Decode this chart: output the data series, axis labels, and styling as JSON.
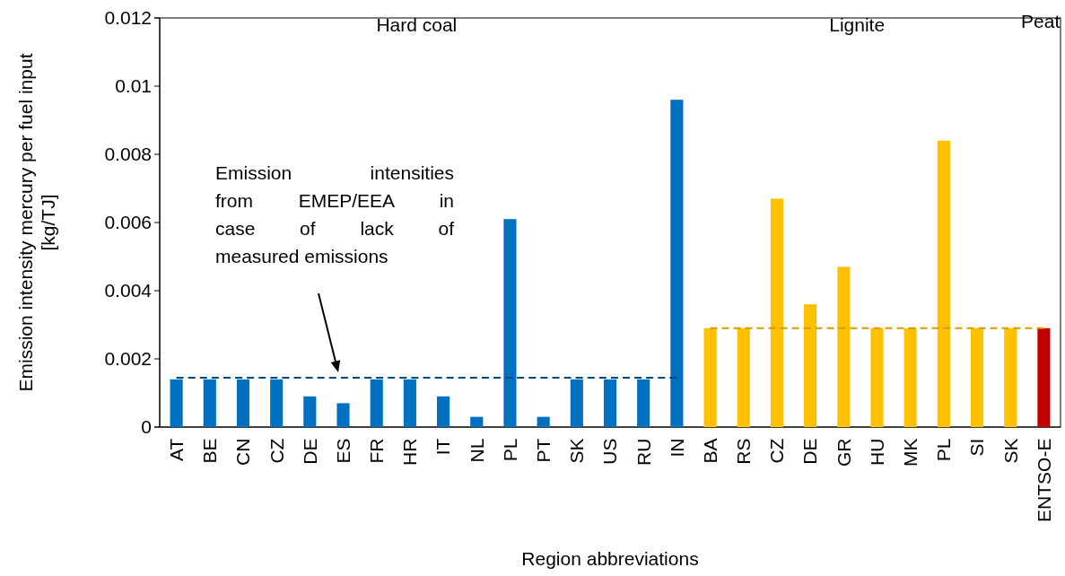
{
  "chart_data": {
    "type": "bar",
    "xlabel": "Region abbreviations",
    "ylabel": "Emission intensity mercury per fuel input [kg/TJ]",
    "categories": [
      "AT",
      "BE",
      "CN",
      "CZ",
      "DE",
      "ES",
      "FR",
      "HR",
      "IT",
      "NL",
      "PL",
      "PT",
      "SK",
      "US",
      "RU",
      "IN",
      "BA",
      "RS",
      "CZ",
      "DE",
      "GR",
      "HU",
      "MK",
      "PL",
      "SI",
      "SK",
      "ENTSO-E"
    ],
    "ylim": [
      0,
      0.012
    ],
    "yticks": [
      0,
      0.002,
      0.004,
      0.006,
      0.008,
      0.01,
      0.012
    ],
    "grid": false,
    "legend": false,
    "series": [
      {
        "values": [
          0.0014,
          0.0014,
          0.0014,
          0.0014,
          0.0009,
          0.0007,
          0.0014,
          0.0014,
          0.0009,
          0.0003,
          0.0061,
          0.0003,
          0.0014,
          0.0014,
          0.0014,
          0.0096,
          0.0029,
          0.0029,
          0.0067,
          0.0036,
          0.0047,
          0.0029,
          0.0029,
          0.0084,
          0.0029,
          0.0029,
          0.0029
        ],
        "colors": [
          "#0070c0",
          "#0070c0",
          "#0070c0",
          "#0070c0",
          "#0070c0",
          "#0070c0",
          "#0070c0",
          "#0070c0",
          "#0070c0",
          "#0070c0",
          "#0070c0",
          "#0070c0",
          "#0070c0",
          "#0070c0",
          "#0070c0",
          "#0070c0",
          "#ffc000",
          "#ffc000",
          "#ffc000",
          "#ffc000",
          "#ffc000",
          "#ffc000",
          "#ffc000",
          "#ffc000",
          "#ffc000",
          "#ffc000",
          "#c00000"
        ]
      },
      {
        "type": "line",
        "color": "#004a80",
        "line_style": "dashed",
        "marker": "none",
        "values": [
          0.00145,
          0.00145,
          0.00145,
          0.00145,
          0.00145,
          0.00145,
          0.00145,
          0.00145,
          0.00145,
          0.00145,
          0.00145,
          0.00145,
          0.00145,
          0.00145,
          0.00145,
          0.00145,
          null,
          null,
          null,
          null,
          null,
          null,
          null,
          null,
          null,
          null,
          null
        ]
      },
      {
        "type": "line",
        "color": "#d99a00",
        "line_style": "dashed",
        "marker": "none",
        "values": [
          null,
          null,
          null,
          null,
          null,
          null,
          null,
          null,
          null,
          null,
          null,
          null,
          null,
          null,
          null,
          null,
          0.0029,
          0.0029,
          0.0029,
          0.0029,
          0.0029,
          0.0029,
          0.0029,
          0.0029,
          0.0029,
          0.0029,
          0.0029
        ]
      }
    ],
    "annotations": [
      "Hard coal",
      "Lignite",
      "Peat",
      "Emission intensities from EMEP/EEA in case of lack of measured emissions"
    ]
  }
}
